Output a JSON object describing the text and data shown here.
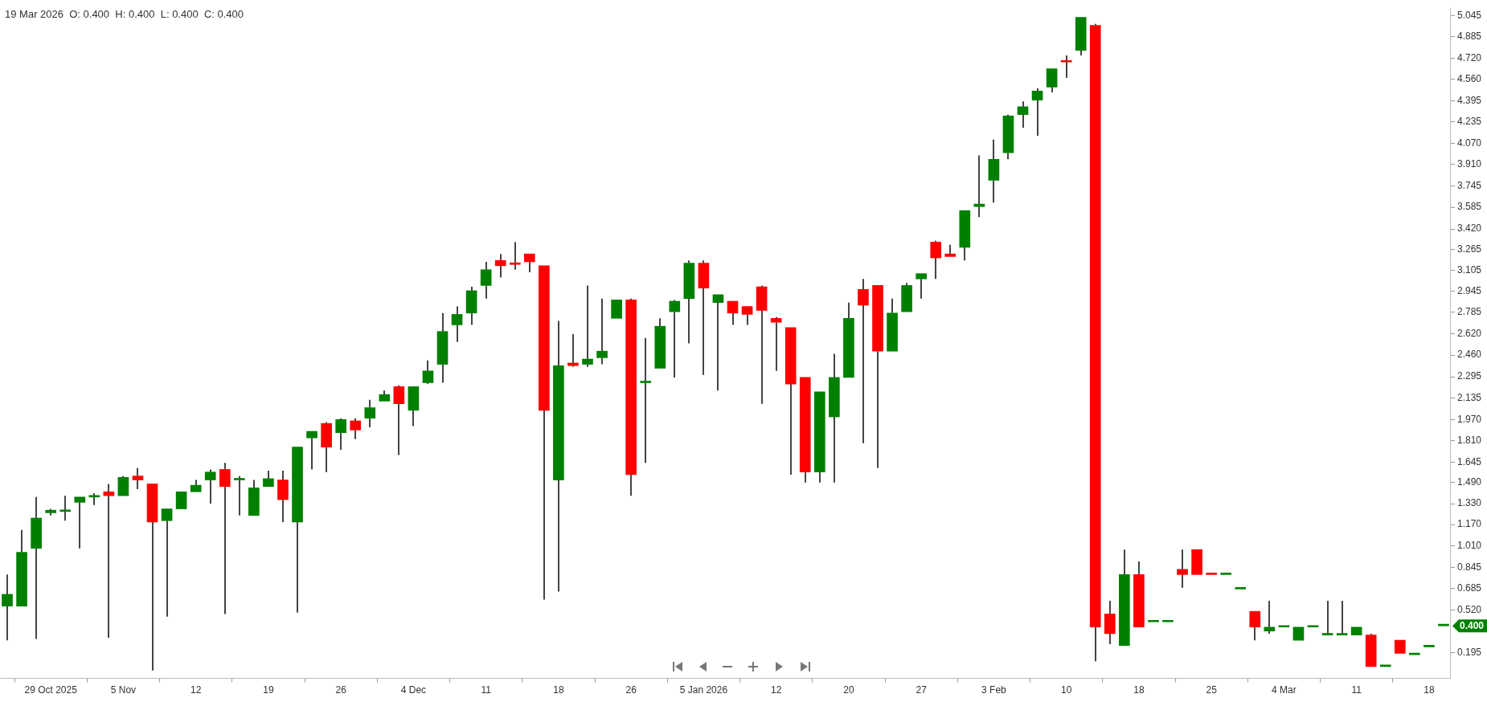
{
  "chart_data": {
    "type": "candlestick",
    "title": "19 Mar 2026  O: 0.400  H: 0.400  L: 0.400  C: 0.400",
    "categories": [
      null,
      null,
      null,
      "29 Oct 2025",
      null,
      null,
      null,
      null,
      "5 Nov",
      null,
      null,
      null,
      null,
      "12",
      null,
      null,
      null,
      null,
      "19",
      null,
      null,
      null,
      null,
      "26",
      null,
      null,
      null,
      null,
      "4 Dec",
      null,
      null,
      null,
      null,
      "11",
      null,
      null,
      null,
      null,
      "18",
      null,
      null,
      null,
      null,
      "26",
      null,
      null,
      null,
      null,
      "5 Jan 2026",
      null,
      null,
      null,
      null,
      "12",
      null,
      null,
      null,
      null,
      "20",
      null,
      null,
      null,
      null,
      "27",
      null,
      null,
      null,
      null,
      "3 Feb",
      null,
      null,
      null,
      null,
      "10",
      null,
      null,
      null,
      null,
      "18",
      null,
      null,
      null,
      null,
      "25",
      null,
      null,
      null,
      null,
      "4 Mar",
      null,
      null,
      null,
      null,
      "11",
      null,
      null,
      null,
      null,
      "18",
      null
    ],
    "ohlc": [
      [
        0.55,
        0.79,
        0.29,
        0.64
      ],
      [
        0.55,
        1.13,
        0.55,
        0.96
      ],
      [
        0.99,
        1.38,
        0.3,
        1.22
      ],
      [
        1.26,
        1.29,
        1.24,
        1.28
      ],
      [
        1.27,
        1.39,
        1.2,
        1.28
      ],
      [
        1.34,
        1.38,
        0.99,
        1.38
      ],
      [
        1.38,
        1.41,
        1.32,
        1.39
      ],
      [
        1.42,
        1.48,
        0.31,
        1.39
      ],
      [
        1.39,
        1.54,
        1.39,
        1.53
      ],
      [
        1.54,
        1.6,
        1.44,
        1.51
      ],
      [
        1.48,
        1.48,
        0.06,
        1.19
      ],
      [
        1.2,
        1.29,
        0.47,
        1.29
      ],
      [
        1.29,
        1.42,
        1.29,
        1.42
      ],
      [
        1.42,
        1.51,
        1.42,
        1.47
      ],
      [
        1.51,
        1.59,
        1.33,
        1.57
      ],
      [
        1.59,
        1.64,
        0.49,
        1.46
      ],
      [
        1.51,
        1.54,
        1.24,
        1.52
      ],
      [
        1.24,
        1.51,
        1.24,
        1.45
      ],
      [
        1.46,
        1.58,
        1.46,
        1.52
      ],
      [
        1.51,
        1.58,
        1.19,
        1.36
      ],
      [
        1.19,
        1.76,
        0.5,
        1.76
      ],
      [
        1.83,
        1.88,
        1.59,
        1.88
      ],
      [
        1.94,
        1.95,
        1.57,
        1.76
      ],
      [
        1.87,
        1.98,
        1.74,
        1.97
      ],
      [
        1.96,
        1.98,
        1.82,
        1.89
      ],
      [
        1.98,
        2.12,
        1.91,
        2.06
      ],
      [
        2.11,
        2.19,
        2.11,
        2.16
      ],
      [
        2.22,
        2.23,
        1.7,
        2.09
      ],
      [
        2.04,
        2.22,
        1.92,
        2.22
      ],
      [
        2.25,
        2.42,
        2.24,
        2.34
      ],
      [
        2.39,
        2.78,
        2.25,
        2.64
      ],
      [
        2.69,
        2.83,
        2.56,
        2.77
      ],
      [
        2.78,
        2.98,
        2.69,
        2.95
      ],
      [
        2.99,
        3.17,
        2.89,
        3.11
      ],
      [
        3.18,
        3.23,
        3.05,
        3.14
      ],
      [
        3.15,
        3.32,
        3.11,
        3.15
      ],
      [
        3.23,
        3.23,
        3.09,
        3.17
      ],
      [
        3.14,
        3.14,
        0.6,
        2.04
      ],
      [
        1.51,
        2.72,
        0.66,
        2.38
      ],
      [
        2.4,
        2.62,
        2.37,
        2.38
      ],
      [
        2.39,
        2.99,
        2.37,
        2.43
      ],
      [
        2.44,
        2.89,
        2.39,
        2.49
      ],
      [
        2.74,
        2.88,
        2.74,
        2.88
      ],
      [
        2.88,
        2.89,
        1.39,
        1.55
      ],
      [
        2.25,
        2.59,
        1.64,
        2.25
      ],
      [
        2.36,
        2.74,
        2.36,
        2.68
      ],
      [
        2.79,
        2.88,
        2.29,
        2.87
      ],
      [
        2.89,
        3.18,
        2.55,
        3.16
      ],
      [
        3.16,
        3.18,
        2.31,
        2.97
      ],
      [
        2.86,
        2.92,
        2.19,
        2.92
      ],
      [
        2.87,
        2.87,
        2.69,
        2.78
      ],
      [
        2.83,
        2.83,
        2.69,
        2.77
      ],
      [
        2.98,
        2.99,
        2.09,
        2.8
      ],
      [
        2.74,
        2.75,
        2.34,
        2.71
      ],
      [
        2.67,
        2.67,
        1.55,
        2.24
      ],
      [
        2.29,
        2.29,
        1.49,
        1.57
      ],
      [
        1.57,
        2.18,
        1.49,
        2.18
      ],
      [
        1.99,
        2.47,
        1.49,
        2.29
      ],
      [
        2.29,
        2.86,
        2.29,
        2.74
      ],
      [
        2.96,
        3.04,
        1.79,
        2.84
      ],
      [
        2.99,
        2.99,
        1.6,
        2.49
      ],
      [
        2.49,
        2.89,
        2.49,
        2.78
      ],
      [
        2.79,
        3.01,
        2.79,
        2.99
      ],
      [
        3.04,
        3.08,
        2.89,
        3.08
      ],
      [
        3.32,
        3.33,
        3.04,
        3.2
      ],
      [
        3.23,
        3.3,
        3.21,
        3.21
      ],
      [
        3.28,
        3.56,
        3.18,
        3.56
      ],
      [
        3.59,
        3.98,
        3.51,
        3.61
      ],
      [
        3.79,
        4.1,
        3.62,
        3.95
      ],
      [
        4.0,
        4.29,
        3.95,
        4.28
      ],
      [
        4.29,
        4.39,
        4.19,
        4.35
      ],
      [
        4.4,
        4.49,
        4.13,
        4.47
      ],
      [
        4.5,
        4.64,
        4.46,
        4.64
      ],
      [
        4.69,
        4.74,
        4.57,
        4.69
      ],
      [
        4.78,
        5.03,
        4.74,
        5.03
      ],
      [
        4.97,
        4.98,
        0.13,
        0.39
      ],
      [
        0.49,
        0.59,
        0.26,
        0.34
      ],
      [
        0.25,
        0.98,
        0.25,
        0.79
      ],
      [
        0.79,
        0.89,
        0.39,
        0.39
      ],
      [
        0.43,
        0.44,
        0.43,
        0.44
      ],
      [
        0.43,
        0.44,
        0.43,
        0.44
      ],
      [
        0.83,
        0.98,
        0.69,
        0.79
      ],
      [
        0.98,
        0.98,
        0.79,
        0.79
      ],
      [
        0.8,
        0.8,
        0.79,
        0.79
      ],
      [
        0.79,
        0.79,
        0.79,
        0.79
      ],
      [
        0.68,
        0.69,
        0.68,
        0.69
      ],
      [
        0.51,
        0.51,
        0.29,
        0.39
      ],
      [
        0.36,
        0.59,
        0.34,
        0.39
      ],
      [
        0.39,
        0.39,
        0.39,
        0.39
      ],
      [
        0.29,
        0.39,
        0.29,
        0.39
      ],
      [
        0.39,
        0.39,
        0.39,
        0.39
      ],
      [
        0.33,
        0.59,
        0.33,
        0.34
      ],
      [
        0.33,
        0.59,
        0.33,
        0.34
      ],
      [
        0.33,
        0.39,
        0.33,
        0.39
      ],
      [
        0.33,
        0.34,
        0.09,
        0.09
      ],
      [
        0.09,
        0.09,
        0.09,
        0.09
      ],
      [
        0.29,
        0.29,
        0.19,
        0.19
      ],
      [
        0.18,
        0.19,
        0.18,
        0.19
      ],
      [
        0.24,
        0.25,
        0.24,
        0.25
      ],
      [
        0.4,
        0.4,
        0.4,
        0.4
      ]
    ],
    "colors": [
      "#008000",
      "#008000",
      "#008000",
      "#008000",
      "#008000",
      "#008000",
      "#008000",
      "#ff0000",
      "#008000",
      "#ff0000",
      "#ff0000",
      "#008000",
      "#008000",
      "#008000",
      "#008000",
      "#ff0000",
      "#008000",
      "#008000",
      "#008000",
      "#ff0000",
      "#008000",
      "#008000",
      "#ff0000",
      "#008000",
      "#ff0000",
      "#008000",
      "#008000",
      "#ff0000",
      "#008000",
      "#008000",
      "#008000",
      "#008000",
      "#008000",
      "#008000",
      "#ff0000",
      "#ff0000",
      "#ff0000",
      "#ff0000",
      "#008000",
      "#ff0000",
      "#008000",
      "#008000",
      "#008000",
      "#ff0000",
      "#008000",
      "#008000",
      "#008000",
      "#008000",
      "#ff0000",
      "#008000",
      "#ff0000",
      "#ff0000",
      "#ff0000",
      "#ff0000",
      "#ff0000",
      "#ff0000",
      "#008000",
      "#008000",
      "#008000",
      "#ff0000",
      "#ff0000",
      "#008000",
      "#008000",
      "#008000",
      "#ff0000",
      "#ff0000",
      "#008000",
      "#008000",
      "#008000",
      "#008000",
      "#008000",
      "#008000",
      "#008000",
      "#ff0000",
      "#008000",
      "#ff0000",
      "#ff0000",
      "#008000",
      "#ff0000",
      "#008000",
      "#008000",
      "#ff0000",
      "#ff0000",
      "#ff0000",
      "#008000",
      "#008000",
      "#ff0000",
      "#008000",
      "#008000",
      "#008000",
      "#008000",
      "#008000",
      "#008000",
      "#008000",
      "#ff0000",
      "#008000",
      "#ff0000",
      "#008000",
      "#008000",
      "#008000"
    ],
    "ylim": [
      0,
      5.1
    ],
    "yticks": [
      5.045,
      4.885,
      {
        "value": 4.72,
        "label": "4.720"
      },
      {
        "value": 4.56,
        "label": "4.560"
      },
      4.395,
      4.235,
      {
        "value": 4.07,
        "label": "4.070"
      },
      {
        "value": 3.91,
        "label": "3.910"
      },
      3.745,
      3.585,
      {
        "value": 3.42,
        "label": "3.420"
      },
      3.265,
      3.105,
      2.945,
      2.785,
      {
        "value": 2.62,
        "label": "2.620"
      },
      {
        "value": 2.46,
        "label": "2.460"
      },
      2.295,
      2.135,
      {
        "value": 1.97,
        "label": "1.970"
      },
      {
        "value": 1.81,
        "label": "1.810"
      },
      1.645,
      {
        "value": 1.49,
        "label": "1.490"
      },
      {
        "value": 1.33,
        "label": "1.330"
      },
      {
        "value": 1.17,
        "label": "1.170"
      },
      {
        "value": 1.01,
        "label": "1.010"
      },
      0.845,
      0.685,
      {
        "value": 0.52,
        "label": "0.520"
      },
      0.195
    ],
    "annotations": [
      "0.400"
    ]
  }
}
